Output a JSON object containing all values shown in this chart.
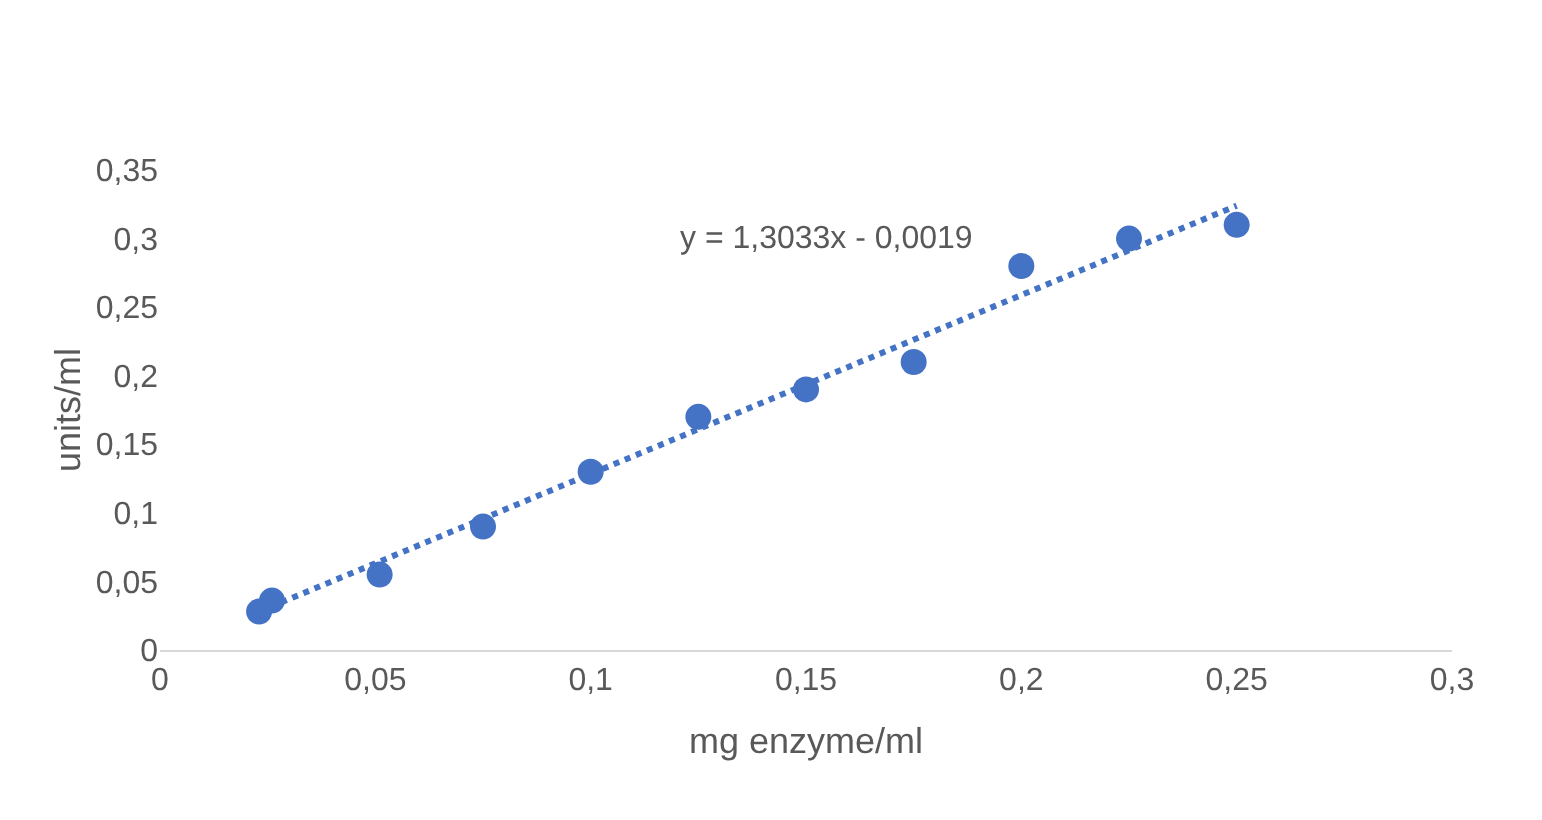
{
  "chart_data": {
    "type": "scatter",
    "xlabel": "mg enzyme/ml",
    "ylabel": "units/ml",
    "xlim": [
      0,
      0.3
    ],
    "ylim": [
      0,
      0.35
    ],
    "xticks": [
      0,
      {
        "value": 0.05,
        "label": "0,05"
      },
      {
        "value": 0.1,
        "label": "0,1"
      },
      {
        "value": 0.15,
        "label": "0,15"
      },
      {
        "value": 0.2,
        "label": "0,2"
      },
      {
        "value": 0.25,
        "label": "0,25"
      },
      {
        "value": 0.3,
        "label": "0,3"
      }
    ],
    "yticks": [
      0,
      {
        "value": 0.05,
        "label": "0,05"
      },
      {
        "value": 0.1,
        "label": "0,1"
      },
      {
        "value": 0.15,
        "label": "0,15"
      },
      {
        "value": 0.2,
        "label": "0,2"
      },
      {
        "value": 0.25,
        "label": "0,25"
      },
      {
        "value": 0.3,
        "label": "0,3"
      },
      {
        "value": 0.35,
        "label": "0,35"
      }
    ],
    "grid": false,
    "annotations": [
      "y = 1,3033x - 0,0019"
    ],
    "series": [
      {
        "marker": "circle",
        "color": "#4472c4",
        "x": [
          0.023,
          0.026,
          0.051,
          0.075,
          0.1,
          0.125,
          0.15,
          0.175,
          0.2,
          0.225,
          0.25
        ],
        "values": [
          0.028,
          0.036,
          0.055,
          0.09,
          0.13,
          0.17,
          0.19,
          0.21,
          0.28,
          0.3,
          0.31
        ]
      },
      {
        "type": "line",
        "marker": "none",
        "color": "#4472c4",
        "line_style": "dotted",
        "x": [
          0.023,
          0.25
        ],
        "values": [
          0.028,
          0.324
        ]
      }
    ]
  }
}
